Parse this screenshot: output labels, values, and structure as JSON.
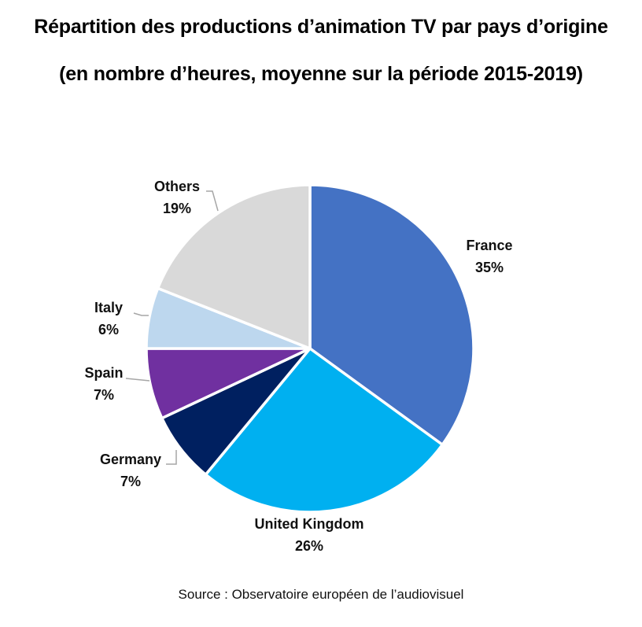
{
  "chart_data": {
    "type": "pie",
    "title": "Répartition des productions d’animation TV par pays d’origine",
    "subtitle": "(en nombre d’heures, moyenne sur la période 2015-2019)",
    "source": "Source : Observatoire européen de l’audiovisuel",
    "start_angle_deg": 0,
    "direction": "clockwise",
    "slices": [
      {
        "label": "France",
        "value": 35,
        "value_label": "35%",
        "color": "#4472C4"
      },
      {
        "label": "United Kingdom",
        "value": 26,
        "value_label": "26%",
        "color": "#00B0F0"
      },
      {
        "label": "Germany",
        "value": 7,
        "value_label": "7%",
        "color": "#002060"
      },
      {
        "label": "Spain",
        "value": 7,
        "value_label": "7%",
        "color": "#7030A0"
      },
      {
        "label": "Italy",
        "value": 6,
        "value_label": "6%",
        "color": "#BDD7EE"
      },
      {
        "label": "Others",
        "value": 19,
        "value_label": "19%",
        "color": "#D9D9D9"
      }
    ]
  }
}
